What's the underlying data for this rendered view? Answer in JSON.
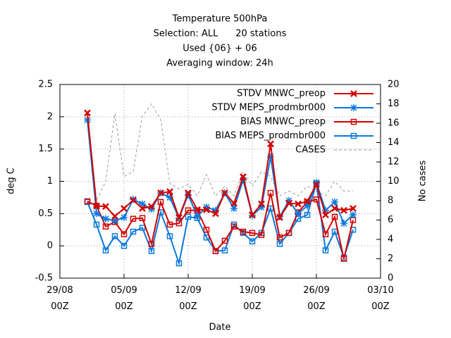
{
  "chart_data": {
    "type": "line",
    "title": [
      "Temperature 500hPa",
      "Selection: ALL      20 stations",
      "Used {06} + 06",
      "Averaging window: 24h"
    ],
    "xlabel": "Date",
    "ylabel": "deg C",
    "y2label": "No cases",
    "x": [
      "01/09 00Z",
      "02/09 00Z",
      "03/09 00Z",
      "04/09 00Z",
      "05/09 00Z",
      "06/09 00Z",
      "07/09 00Z",
      "08/09 00Z",
      "09/09 00Z",
      "10/09 00Z",
      "11/09 00Z",
      "12/09 00Z",
      "13/09 00Z",
      "14/09 00Z",
      "15/09 00Z",
      "16/09 00Z",
      "17/09 00Z",
      "18/09 00Z",
      "19/09 00Z",
      "20/09 00Z",
      "21/09 00Z",
      "22/09 00Z",
      "23/09 00Z",
      "24/09 00Z",
      "25/09 00Z",
      "26/09 00Z",
      "27/09 00Z",
      "28/09 00Z",
      "29/09 00Z",
      "30/09 00Z"
    ],
    "xlim": [
      "29/08 00Z",
      "03/10 00Z"
    ],
    "xticks": [
      "29/08 00Z",
      "05/09 00Z",
      "12/09 00Z",
      "19/09 00Z",
      "26/09 00Z",
      "03/10 00Z"
    ],
    "ylim": [
      -0.5,
      2.5
    ],
    "yticks": [
      -0.5,
      0,
      0.5,
      1,
      1.5,
      2,
      2.5
    ],
    "y2lim": [
      0,
      20
    ],
    "y2ticks": [
      0,
      2,
      4,
      6,
      8,
      10,
      12,
      14,
      16,
      18,
      20
    ],
    "grid": true,
    "legend": "top-right",
    "series": [
      {
        "name": "STDV MNWC_preop",
        "color": "#d40000",
        "marker": "x",
        "values": [
          2.06,
          0.62,
          0.61,
          0.46,
          0.58,
          0.71,
          0.58,
          0.61,
          0.82,
          0.84,
          0.44,
          0.82,
          0.56,
          0.56,
          0.5,
          0.82,
          0.66,
          1.07,
          0.48,
          0.65,
          1.58,
          0.44,
          0.66,
          0.65,
          0.69,
          0.95,
          0.48,
          0.58,
          0.55,
          0.58
        ]
      },
      {
        "name": "STDV MEPS_prodmbr000",
        "color": "#0a78dc",
        "marker": "star",
        "values": [
          1.95,
          0.5,
          0.42,
          0.39,
          0.44,
          0.72,
          0.65,
          0.57,
          0.82,
          0.75,
          0.43,
          0.79,
          0.46,
          0.6,
          0.55,
          0.82,
          0.58,
          1.02,
          0.47,
          0.6,
          1.38,
          0.45,
          0.7,
          0.5,
          0.62,
          0.98,
          0.55,
          0.68,
          0.35,
          0.48
        ]
      },
      {
        "name": "BIAS MNWC_preop",
        "color": "#d40000",
        "marker": "square",
        "values": [
          0.69,
          0.62,
          0.3,
          0.37,
          0.18,
          0.42,
          0.43,
          0.03,
          0.68,
          0.33,
          0.35,
          0.55,
          0.55,
          0.25,
          -0.08,
          0.08,
          0.3,
          0.22,
          0.2,
          0.17,
          0.82,
          0.13,
          0.2,
          0.52,
          0.68,
          0.72,
          0.18,
          0.45,
          -0.2,
          0.4
        ]
      },
      {
        "name": "BIAS MEPS_prodmbr000",
        "color": "#0a78dc",
        "marker": "square",
        "values": [
          0.68,
          0.33,
          -0.07,
          0.15,
          0,
          0.22,
          0.28,
          -0.08,
          0.52,
          0.15,
          -0.27,
          0.45,
          0.43,
          0.13,
          -0.08,
          -0.07,
          0.33,
          0.2,
          0.07,
          0.2,
          0.58,
          0.03,
          0.2,
          0.42,
          0.48,
          0.97,
          -0.07,
          0.22,
          -0.18,
          0.25
        ]
      },
      {
        "name": "CASES",
        "color": "#a0a0a0",
        "marker": "dashed",
        "axis": "y2",
        "values": [
          17,
          8,
          10,
          17,
          10.5,
          11,
          16.7,
          18,
          16.4,
          9.8,
          9.2,
          9.7,
          8.5,
          10.7,
          8.5,
          9.5,
          8.5,
          11,
          9.5,
          11,
          10.5,
          8.5,
          9,
          8.5,
          9.5,
          9,
          8.5,
          10,
          9,
          9
        ]
      }
    ]
  }
}
